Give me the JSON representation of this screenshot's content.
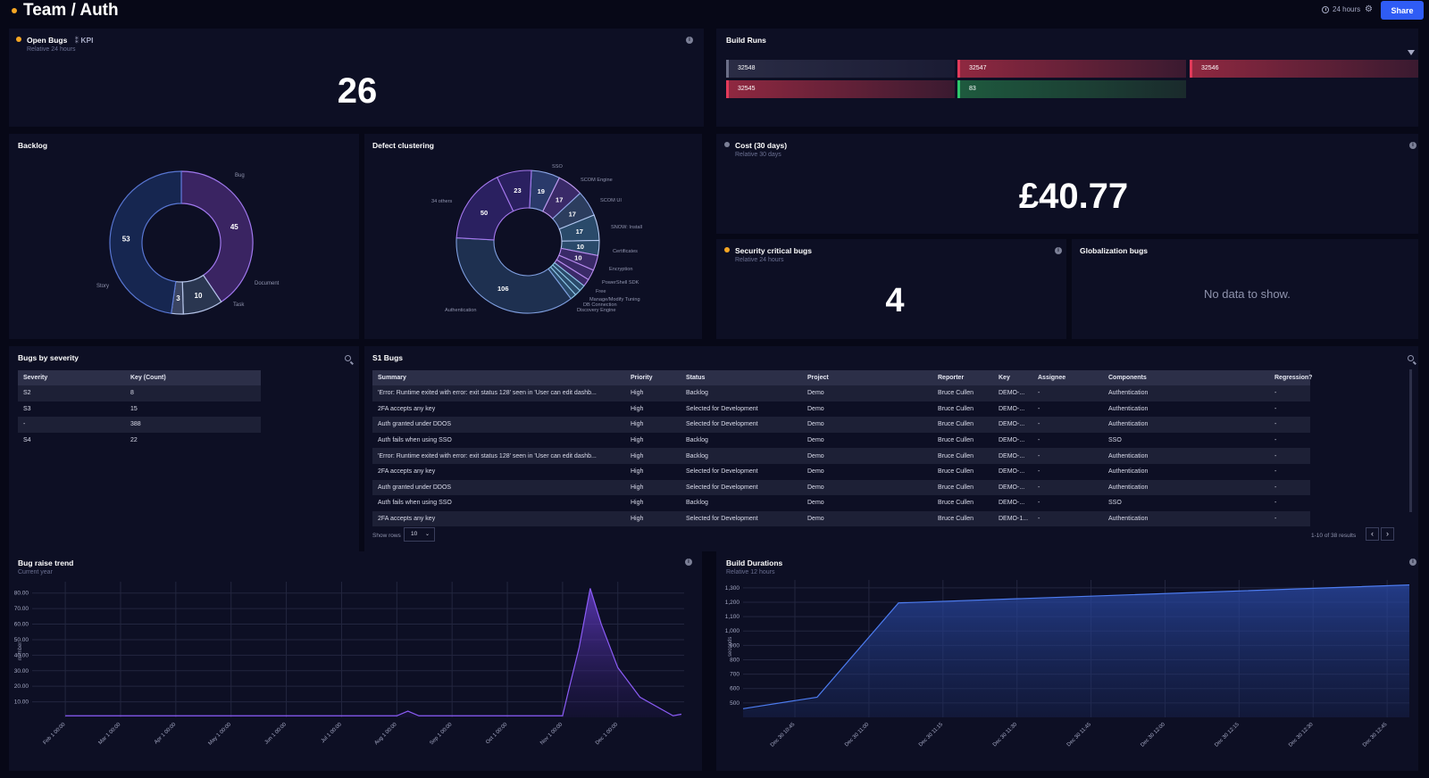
{
  "header": {
    "title": "Team / Auth",
    "time_range": "24 hours",
    "share_label": "Share"
  },
  "open_bugs": {
    "title": "Open Bugs",
    "kpi_tag": "KPI",
    "subtitle": "Relative 24 hours",
    "value": "26"
  },
  "build_runs": {
    "title": "Build Runs",
    "runs": [
      {
        "id": "32548",
        "status": "grey"
      },
      {
        "id": "32547",
        "status": "red"
      },
      {
        "id": "32546",
        "status": "red"
      },
      {
        "id": "32545",
        "status": "red"
      },
      {
        "id": "83",
        "status": "green"
      }
    ]
  },
  "backlog": {
    "title": "Backlog",
    "chart_data": {
      "type": "pie",
      "labels": [
        "Bug",
        "Document",
        "Task",
        "Story"
      ],
      "values": [
        45,
        10,
        3,
        53
      ],
      "colors": [
        "#3a2462",
        "#2a3650",
        "#3a4462",
        "#162650"
      ],
      "strokes": [
        "#a078ee",
        "#b4c3e8",
        "#b4c3e8",
        "#5876d2"
      ]
    }
  },
  "defect_clustering": {
    "title": "Defect clustering",
    "chart_data": {
      "type": "pie",
      "labels": [
        "SSO",
        "SCOM Engine",
        "SCOM UI",
        "SNOW: Install",
        "Certificates",
        "Encryption",
        "PowerShell SDK",
        "Free",
        "Manage/Modify Tuning",
        "DB Connection",
        "Discovery Engine",
        "Authentication",
        "34 others"
      ],
      "values": [
        19,
        17,
        17,
        17,
        10,
        10,
        7,
        5,
        4,
        4,
        4,
        106,
        50
      ],
      "slice_values_shown": [
        "19",
        "17",
        "17",
        "17",
        "10",
        "10",
        "106",
        "50",
        "23"
      ],
      "extra_value": "23"
    }
  },
  "cost": {
    "title": "Cost (30 days)",
    "subtitle": "Relative 30 days",
    "value": "£40.77"
  },
  "security_bugs": {
    "title": "Security critical bugs",
    "subtitle": "Relative 24 hours",
    "value": "4"
  },
  "globalization_bugs": {
    "title": "Globalization bugs",
    "empty_text": "No data to show."
  },
  "bugs_by_severity": {
    "title": "Bugs by severity",
    "columns": [
      "Severity",
      "Key (Count)"
    ],
    "rows": [
      [
        "S2",
        "8"
      ],
      [
        "S3",
        "15"
      ],
      [
        "-",
        "388"
      ],
      [
        "S4",
        "22"
      ]
    ]
  },
  "s1_bugs": {
    "title": "S1 Bugs",
    "columns": [
      "Summary",
      "Priority",
      "Status",
      "Project",
      "Reporter",
      "Key",
      "Assignee",
      "Components",
      "Regression?"
    ],
    "rows": [
      [
        "'Error: Runtime exited with error: exit status 128' seen in 'User can edit dashb...",
        "High",
        "Backlog",
        "Demo",
        "Bruce Cullen",
        "DEMO-...",
        "-",
        "Authentication",
        "-"
      ],
      [
        "2FA accepts any key",
        "High",
        "Selected for Development",
        "Demo",
        "Bruce Cullen",
        "DEMO-...",
        "-",
        "Authentication",
        "-"
      ],
      [
        "Auth granted under DDOS",
        "High",
        "Selected for Development",
        "Demo",
        "Bruce Cullen",
        "DEMO-...",
        "-",
        "Authentication",
        "-"
      ],
      [
        "Auth fails when using SSO",
        "High",
        "Backlog",
        "Demo",
        "Bruce Cullen",
        "DEMO-...",
        "-",
        "SSO",
        "-"
      ],
      [
        "'Error: Runtime exited with error: exit status 128' seen in 'User can edit dashb...",
        "High",
        "Backlog",
        "Demo",
        "Bruce Cullen",
        "DEMO-...",
        "-",
        "Authentication",
        "-"
      ],
      [
        "2FA accepts any key",
        "High",
        "Selected for Development",
        "Demo",
        "Bruce Cullen",
        "DEMO-...",
        "-",
        "Authentication",
        "-"
      ],
      [
        "Auth granted under DDOS",
        "High",
        "Selected for Development",
        "Demo",
        "Bruce Cullen",
        "DEMO-...",
        "-",
        "Authentication",
        "-"
      ],
      [
        "Auth fails when using SSO",
        "High",
        "Backlog",
        "Demo",
        "Bruce Cullen",
        "DEMO-...",
        "-",
        "SSO",
        "-"
      ],
      [
        "2FA accepts any key",
        "High",
        "Selected for Development",
        "Demo",
        "Bruce Cullen",
        "DEMO-1...",
        "-",
        "Authentication",
        "-"
      ]
    ],
    "show_rows_label": "Show rows",
    "rows_per_page": "10",
    "pagination": "1-10 of 38 results"
  },
  "bug_raise_trend": {
    "title": "Bug raise trend",
    "subtitle": "Current year",
    "chart_data": {
      "type": "area",
      "ylabel": "number",
      "ylim": [
        0,
        85
      ],
      "y_ticks": [
        "10.00",
        "20.00",
        "30.00",
        "40.00",
        "50.00",
        "60.00",
        "70.00",
        "80.00"
      ],
      "x_labels": [
        "Feb 1 00:00",
        "Mar 1 00:00",
        "Apr 1 00:00",
        "May 1 00:00",
        "Jun 1 00:00",
        "Jul 1 00:00",
        "Aug 1 00:00",
        "Sep 1 00:00",
        "Oct 1 00:00",
        "Nov 1 00:00",
        "Dec 1 00:00"
      ],
      "x": [
        0,
        1,
        1.5,
        2,
        2.5,
        3,
        3.5,
        4,
        4.5,
        5,
        5.5,
        6,
        6.2,
        6.4,
        6.6,
        7,
        7.5,
        8,
        8.3,
        8.6,
        8.8,
        9,
        9.1,
        9.3,
        9.5,
        9.7,
        10,
        10.4,
        11,
        11.15
      ],
      "values": [
        1,
        1,
        1,
        1,
        1,
        1,
        1,
        1,
        1,
        1,
        1,
        1,
        4,
        1,
        1,
        1,
        1,
        1,
        1,
        1,
        1,
        1,
        16,
        45,
        83,
        60,
        32,
        13,
        1,
        2
      ]
    }
  },
  "build_durations": {
    "title": "Build Durations",
    "subtitle": "Relative 12 hours",
    "chart_data": {
      "type": "area",
      "ylabel": "seconds",
      "ylim": [
        400,
        1330
      ],
      "y_ticks": [
        "500",
        "600",
        "700",
        "800",
        "900",
        "1,000",
        "1,100",
        "1,200",
        "1,300"
      ],
      "x_labels": [
        "Dec 30 10:45",
        "Dec 30 11:00",
        "Dec 30 11:15",
        "Dec 30 11:30",
        "Dec 30 11:45",
        "Dec 30 12:00",
        "Dec 30 12:15",
        "Dec 30 12:30",
        "Dec 30 12:45"
      ],
      "x": [
        0,
        1,
        2.1,
        9
      ],
      "values": [
        460,
        540,
        1195,
        1320
      ]
    }
  }
}
